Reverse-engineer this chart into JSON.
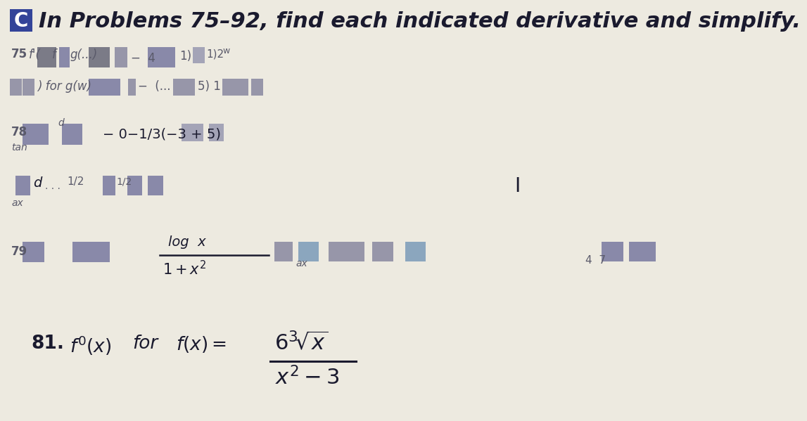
{
  "bg_color": "#edeae0",
  "title_text": "In Problems 75–92, find each indicated derivative and simplify.",
  "title_fontsize": 22,
  "box_color": "#334499",
  "box_label": "C",
  "text_color": "#1a1a2e",
  "gray_dark": "#5a5a6a",
  "gray_mid": "#8888a0",
  "gray_light": "#b0b0c0",
  "blur_dark": "#6a6a7a",
  "blur_mid": "#9090a0",
  "blur_light": "#c0c0cc"
}
